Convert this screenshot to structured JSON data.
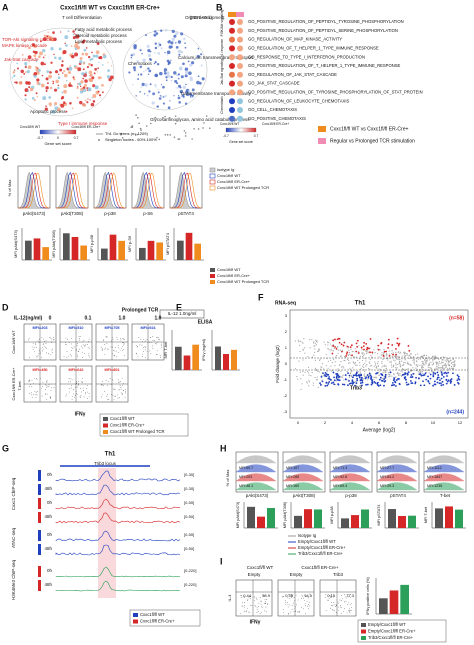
{
  "panel_labels": [
    "A",
    "B",
    "C",
    "D",
    "E",
    "F",
    "G",
    "H",
    "I"
  ],
  "a": {
    "title": "Cxxc1fl/fl WT vs Cxxc1fl/fl ER-Cre+",
    "fdr": "(FDR <0.1)",
    "clusters": [
      "T cell Differentiation",
      "Organ development",
      "Fatty acid metabolic process",
      "Steroid metabolic process",
      "Lipid metabolic process",
      "Chemotaxis",
      "Calcium ion transmembrane transport",
      "Transmembrane transporter activity",
      "Glycosaminoglycan, Amino acid catabolic process",
      "Apoptotic process",
      "Type I immune response",
      "TOR-Akt signaling cascade",
      "MAPK kinase cascade",
      "Jak-Stat cascade"
    ],
    "legend": [
      "Th1 Go terms (n= 1209)",
      "Singleton nodes - 60%-100%"
    ],
    "score_label": "Gene set score",
    "score_ticks": [
      "-0.7",
      "0",
      "0.7"
    ],
    "score_ends": [
      "Cxxc1fl/fl WT",
      "Cxxc1fl/fl ER-Cre+"
    ]
  },
  "b": {
    "groups": [
      "PI3K/Akt signaling",
      "Th1 response",
      "Jak-Stat signaling",
      "Chemotaxis"
    ],
    "terms": [
      "GO_POSITIVE_REGULATION_OF_PEPTIDYL_TYROSINE_PHOSPHORYLATION",
      "GO_POSITIVE_REGULATION_OF_PEPTIDYL_SERINE_PHOSPHORYLATION",
      "GO_REGULATION_OF_MAP_KINASE_ACTIVITY",
      "GO_REGULATION_OF_T_HELPER_1_TYPE_IMMUNE_RESPONSE",
      "GO_RESPONSE_TO_TYPE_I_INTERFERON_PRODUCTION",
      "GO_POSITIVE_REGULATION_OF_T_HELPER_1_TYPE_IMMUNE_RESPONSE",
      "GO_REGULATION_OF_JAK_STAT_CASCADE",
      "GO_JAK_STAT_CASCADE",
      "GO_POSITIVE_REGULATION_OF_TYROSINE_PHOSPHORYLATION_OF_STAT_PROTEIN",
      "GO_REGULATION_OF_LEUKOCYTE_CHEMOTAXIS",
      "GO_CELL_CHEMOTAXIS",
      "GO_POSITIVE_CHEMOTAXIS"
    ],
    "score_ends": [
      "Cxxc1fl/fl WT",
      "Cxxc1fl/fl ER-Cre+"
    ],
    "score_label": "Gene set score",
    "score_ticks": [
      "-0.7",
      "0.7"
    ],
    "legend": [
      "Cxxc1fl/fl WT vs Cxxc1fl/fl ER-Cre+",
      "Regular vs Prolonged TCR stimulation"
    ]
  },
  "c": {
    "y_label": "% of Max",
    "markers": [
      "pAkt(S473)",
      "pAkt(T308)",
      "p-p38",
      "p-S6",
      "pSTAT4"
    ],
    "legend": [
      "Isotype Ig",
      "Cxxc1fl/fl WT",
      "Cxxc1fl/fl ER-Cre+",
      "Cxxc1fl/fl WT Prolonged TCR"
    ],
    "bar_labels": [
      "MFI pAkt(S473)",
      "MFI pAkt(T308)",
      "MFI p-p38",
      "MFI p-S6",
      "MFI pSTAT4"
    ],
    "bar_legend": [
      "Cxxc1fl/fl WT",
      "Cxxc1fl/fl ER-Cre+",
      "Cxxc1fl/fl WT Prolonged TCR"
    ]
  },
  "d": {
    "il12": "IL-12(ng/ml)",
    "doses": [
      "0",
      "0.1",
      "1.0",
      "1.0"
    ],
    "prolonged": "Prolonged TCR",
    "rows": [
      "Cxxc1fl/fl WT",
      "Cxxc1fl/fl ER-Cre+"
    ],
    "mfi": [
      [
        "MFI=203",
        "MFI=510",
        "MFI=705",
        "MFI=924"
      ],
      [
        "MFI=450",
        "MFI=642",
        "MFI=801"
      ]
    ],
    "y_label": "T-bet",
    "x_label": "IFNγ",
    "box_title": "IL-12 1.0ng/ml",
    "bar_label": "MFI T-bet",
    "legend": [
      "Cxxc1fl/fl WT",
      "Cxxc1fl/fl ER-Cre+",
      "Cxxc1fl/fl WT Prolonged TCR"
    ]
  },
  "e": {
    "title": "ELISA",
    "y_label": "IFNγ (ng/ml)"
  },
  "f": {
    "tag": "RNA-seq",
    "title": "Th1",
    "up": "(n=58)",
    "down": "(n=244)",
    "gene": "Trib3",
    "y_label": "Fold change (log2)",
    "x_label": "Average (log2)",
    "x_ticks": [
      "0",
      "2",
      "4",
      "6",
      "8",
      "10",
      "12"
    ],
    "y_ticks": [
      "3",
      "2",
      "1",
      "0",
      "-1",
      "-2",
      "-3"
    ]
  },
  "g": {
    "title": "Th1",
    "locus": "Trib3 locus",
    "groups": [
      "Cxxc1 ChIP-seq",
      "ATAC-seq",
      "H3K4Me3 ChIP-seq"
    ],
    "tracks": [
      "0h",
      "48h",
      "0h",
      "48h",
      "0h",
      "48h",
      "0h",
      "48h"
    ],
    "ranges": [
      "[0-30]",
      "[0-30]",
      "[0-50]",
      "[0-50]",
      "[0-50]",
      "[0-50]",
      "[0-220]",
      "[0-220]"
    ],
    "legend": [
      "Cxxc1fl/fl WT",
      "Cxxc1fl/fl ER-Cre+"
    ]
  },
  "h": {
    "y_label": "% of Max",
    "markers": [
      "pAkt(S473)",
      "pAkt(T308)",
      "p-p38",
      "pSTAT4",
      "T-bet"
    ],
    "mfi": [
      [
        "MFI:60.7",
        "MFI:203",
        "MFI:48.1"
      ],
      [
        "MFI:107",
        "MFI:288",
        "MFI:160"
      ],
      [
        "MFI:71.3",
        "MFI:92.8",
        "MFI:69.4"
      ],
      [
        "MFI:27.7",
        "MFI:84.2",
        "MFI:39.3"
      ],
      [
        "MFI:1112",
        "MFI:1847",
        "MFI:1235"
      ]
    ],
    "bar_labels": [
      "MFI pAkt(S473)",
      "MFI pAkt(T308)",
      "MFI p-p38",
      "MFI pSTAT4",
      "MFI T-bet"
    ],
    "legend": [
      "Isotype Ig",
      "Empty/Cxxc1fl/fl WT",
      "Empty/Cxxc1fl/fl ER-Cre+",
      "Trib3/Cxxc1fl/fl ER-Cre+"
    ]
  },
  "i": {
    "cols": [
      "Cxxc1fl/fl WT",
      "Cxxc1fl/fl ER-Cre+"
    ],
    "plots": [
      "Empty",
      "Empty",
      "Trib3"
    ],
    "quadrants": [
      [
        "0.44",
        "58.9"
      ],
      [
        "0.36",
        "14.5"
      ],
      [
        "0.15",
        "77.3"
      ]
    ],
    "x_label": "IFNγ",
    "y_label": "IL-4",
    "bar_label": "IFNγ positive cells (%)",
    "legend": [
      "Empty/Cxxc1fl/fl WT",
      "Empty/Cxxc1fl/fl ER-Cre+",
      "Trib3/Cxxc1fl/fl ER-Cre+"
    ]
  }
}
